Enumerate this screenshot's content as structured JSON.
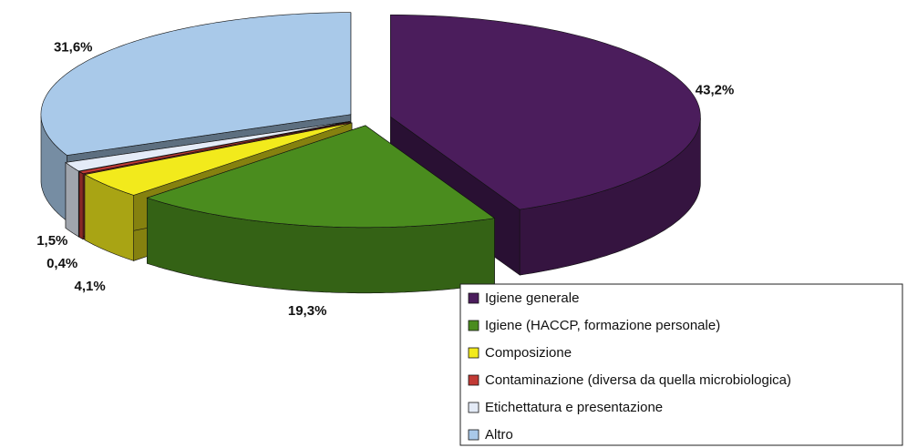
{
  "chart_data": {
    "type": "pie",
    "categories": [
      "Igiene generale",
      "Igiene (HACCP, formazione personale)",
      "Composizione",
      "Contaminazione (diversa da quella microbiologica)",
      "Etichettatura e presentazione",
      "Altro"
    ],
    "values": [
      43.2,
      19.3,
      4.1,
      0.4,
      1.5,
      31.6
    ],
    "value_labels": [
      "43,2%",
      "19,3%",
      "4,1%",
      "0,4%",
      "1,5%",
      "31,6%"
    ],
    "colors": [
      "#4b1d5c",
      "#4a8c1e",
      "#f2ea1c",
      "#c23a35",
      "#e4ebf7",
      "#a9c9e9"
    ],
    "legend": "bottom-right"
  }
}
